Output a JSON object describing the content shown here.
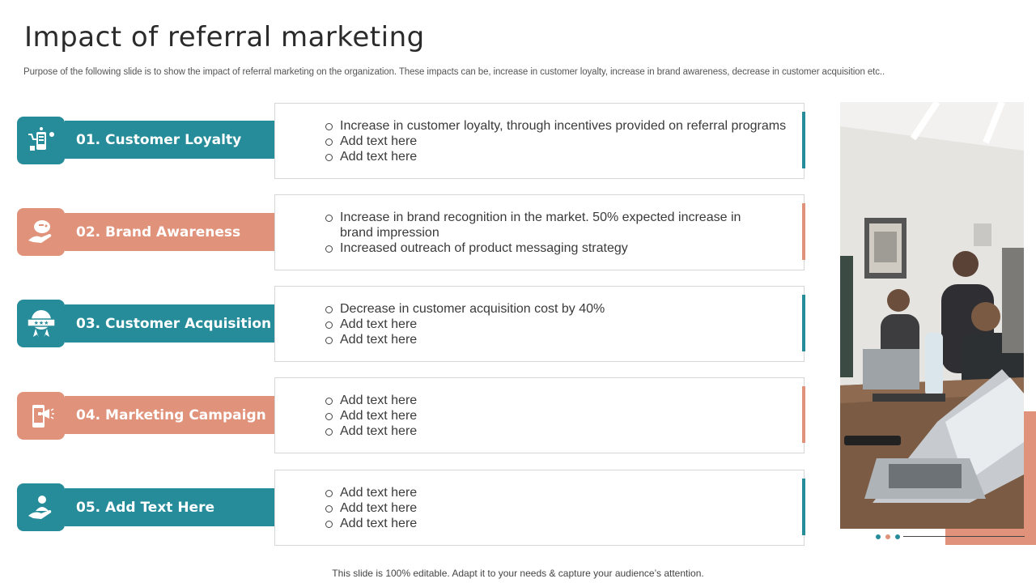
{
  "header": {
    "title": "Impact of referral marketing",
    "subtitle": "Purpose of the following slide is to show the impact of referral marketing on the organization. These impacts can be, increase in customer loyalty, increase in brand awareness, decrease in customer acquisition etc.."
  },
  "colors": {
    "teal": "#268c9a",
    "salmon": "#e0927a"
  },
  "items": [
    {
      "label": "01. Customer Loyalty",
      "icon": "shopping-loyalty-icon",
      "color": "teal",
      "bullets": [
        "Increase in customer loyalty, through incentives provided on referral programs",
        "Add text here",
        "Add text here"
      ]
    },
    {
      "label": "02. Brand Awareness",
      "icon": "hand-piggy-icon",
      "color": "salmon",
      "bullets": [
        "Increase in brand recognition in the market. 50% expected increase in brand impression",
        "Increased outreach of product messaging strategy"
      ]
    },
    {
      "label": "03. Customer Acquisition",
      "icon": "rating-badge-icon",
      "color": "teal",
      "bullets": [
        "Decrease in customer acquisition cost by 40%",
        "Add text here",
        "Add text here"
      ]
    },
    {
      "label": "04. Marketing Campaign",
      "icon": "phone-megaphone-icon",
      "color": "salmon",
      "bullets": [
        "Add text here",
        "Add text here",
        "Add text here"
      ]
    },
    {
      "label": "05. Add Text Here",
      "icon": "hand-person-icon",
      "color": "teal",
      "bullets": [
        "Add text here",
        "Add text here",
        "Add text here"
      ]
    }
  ],
  "photo": {
    "subject": "team-meeting-photo"
  },
  "footer": {
    "text": "This slide is 100% editable. Adapt it to your needs & capture your audience’s attention."
  }
}
